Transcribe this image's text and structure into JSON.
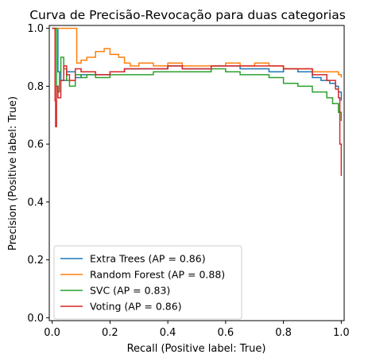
{
  "chart_data": {
    "type": "line",
    "title": "Curva de Precisão-Revocação para duas categorias",
    "xlabel": "Recall (Positive label: True)",
    "ylabel": "Precision (Positive label: True)",
    "xlim": [
      -0.01,
      1.01
    ],
    "ylim": [
      -0.01,
      1.01
    ],
    "x_ticks": [
      "0.0",
      "0.2",
      "0.4",
      "0.6",
      "0.8",
      "1.0"
    ],
    "y_ticks": [
      "0.0",
      "0.2",
      "0.4",
      "0.6",
      "0.8",
      "1.0"
    ],
    "legend_position": "lower-left",
    "grid": false,
    "series": [
      {
        "name": "Extra Trees (AP = 0.86)",
        "color": "#1f77b4",
        "x": [
          0.0,
          0.01,
          0.02,
          0.03,
          0.05,
          0.08,
          0.1,
          0.15,
          0.2,
          0.25,
          0.3,
          0.35,
          0.4,
          0.45,
          0.5,
          0.55,
          0.6,
          0.65,
          0.7,
          0.75,
          0.8,
          0.85,
          0.9,
          0.93,
          0.96,
          0.98,
          0.99,
          1.0
        ],
        "y": [
          1.0,
          1.0,
          0.85,
          0.82,
          0.85,
          0.83,
          0.84,
          0.84,
          0.85,
          0.86,
          0.86,
          0.86,
          0.87,
          0.86,
          0.86,
          0.87,
          0.87,
          0.86,
          0.86,
          0.85,
          0.86,
          0.85,
          0.83,
          0.82,
          0.81,
          0.8,
          0.78,
          0.75
        ]
      },
      {
        "name": "Random Forest (AP = 0.88)",
        "color": "#ff7f0e",
        "x": [
          0.0,
          0.02,
          0.04,
          0.06,
          0.08,
          0.085,
          0.09,
          0.1,
          0.12,
          0.15,
          0.18,
          0.2,
          0.23,
          0.25,
          0.27,
          0.3,
          0.33,
          0.35,
          0.4,
          0.45,
          0.5,
          0.55,
          0.6,
          0.65,
          0.7,
          0.75,
          0.8,
          0.85,
          0.9,
          0.95,
          0.98,
          0.99,
          1.0
        ],
        "y": [
          1.0,
          1.0,
          1.0,
          1.0,
          1.0,
          0.88,
          0.88,
          0.89,
          0.9,
          0.92,
          0.93,
          0.91,
          0.9,
          0.88,
          0.87,
          0.88,
          0.88,
          0.87,
          0.88,
          0.87,
          0.87,
          0.87,
          0.88,
          0.87,
          0.88,
          0.87,
          0.86,
          0.86,
          0.85,
          0.85,
          0.85,
          0.84,
          0.83
        ]
      },
      {
        "name": "SVC (AP = 0.83)",
        "color": "#2ca02c",
        "x": [
          0.0,
          0.01,
          0.015,
          0.02,
          0.025,
          0.03,
          0.04,
          0.05,
          0.06,
          0.08,
          0.1,
          0.12,
          0.15,
          0.2,
          0.25,
          0.3,
          0.35,
          0.4,
          0.45,
          0.5,
          0.55,
          0.6,
          0.65,
          0.7,
          0.75,
          0.8,
          0.85,
          0.9,
          0.95,
          0.97,
          0.99,
          1.0
        ],
        "y": [
          1.0,
          1.0,
          0.8,
          0.78,
          0.85,
          0.9,
          0.86,
          0.82,
          0.8,
          0.84,
          0.83,
          0.84,
          0.83,
          0.84,
          0.84,
          0.84,
          0.85,
          0.85,
          0.85,
          0.85,
          0.86,
          0.85,
          0.84,
          0.84,
          0.83,
          0.81,
          0.8,
          0.78,
          0.76,
          0.74,
          0.71,
          0.68
        ]
      },
      {
        "name": "Voting (AP = 0.86)",
        "color": "#d62728",
        "x": [
          0.0,
          0.01,
          0.012,
          0.015,
          0.02,
          0.03,
          0.04,
          0.05,
          0.06,
          0.08,
          0.1,
          0.15,
          0.2,
          0.25,
          0.3,
          0.35,
          0.4,
          0.45,
          0.5,
          0.55,
          0.6,
          0.65,
          0.7,
          0.75,
          0.8,
          0.85,
          0.9,
          0.95,
          0.98,
          0.99,
          0.995,
          1.0
        ],
        "y": [
          1.0,
          0.75,
          0.66,
          0.8,
          0.76,
          0.82,
          0.87,
          0.84,
          0.82,
          0.86,
          0.85,
          0.84,
          0.85,
          0.86,
          0.86,
          0.86,
          0.87,
          0.86,
          0.86,
          0.87,
          0.87,
          0.87,
          0.87,
          0.87,
          0.86,
          0.86,
          0.84,
          0.82,
          0.79,
          0.76,
          0.6,
          0.49
        ]
      }
    ]
  }
}
